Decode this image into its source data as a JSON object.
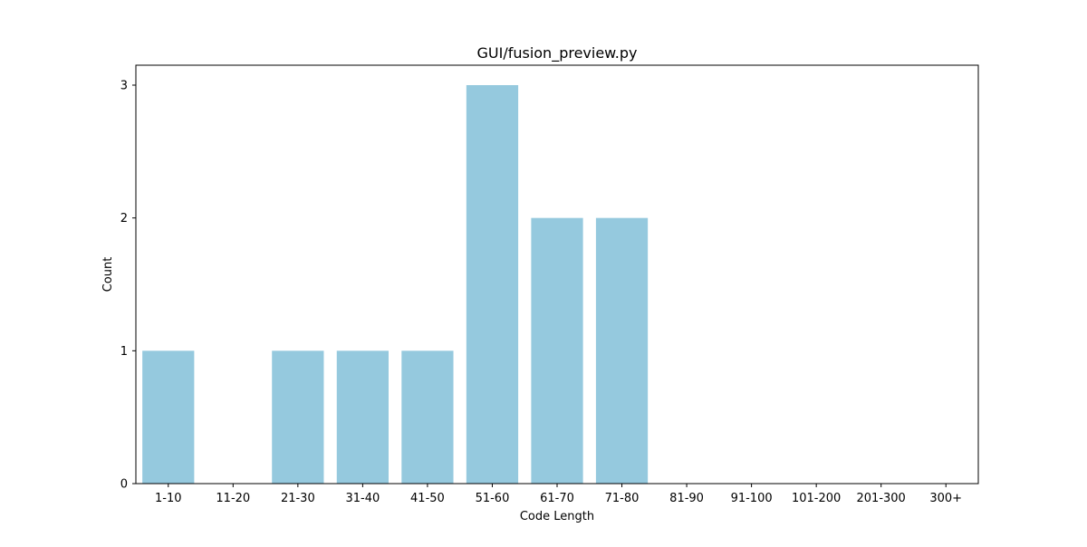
{
  "chart_data": {
    "type": "bar",
    "title": "GUI/fusion_preview.py",
    "xlabel": "Code Length",
    "ylabel": "Count",
    "categories": [
      "1-10",
      "11-20",
      "21-30",
      "31-40",
      "41-50",
      "51-60",
      "61-70",
      "71-80",
      "81-90",
      "91-100",
      "101-200",
      "201-300",
      "300+"
    ],
    "values": [
      1,
      0,
      1,
      1,
      1,
      3,
      2,
      2,
      0,
      0,
      0,
      0,
      0
    ],
    "ylim": [
      0,
      3.15
    ],
    "yticks": [
      0,
      1,
      2,
      3
    ],
    "grid": false,
    "bar_color": "#95c9de"
  }
}
